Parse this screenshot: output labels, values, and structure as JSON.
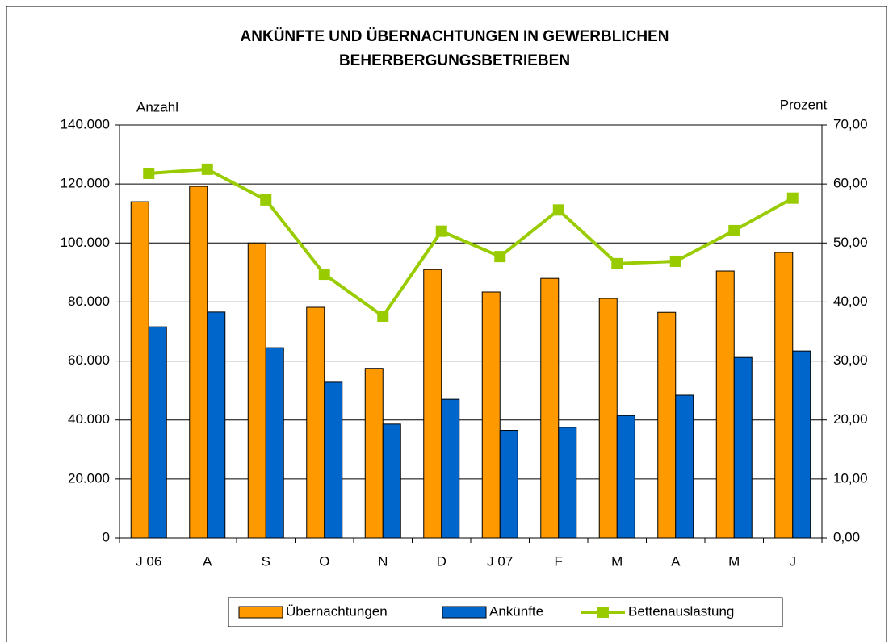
{
  "chart_data": {
    "type": "bar",
    "title": [
      "ANKÜNFTE UND ÜBERNACHTUNGEN IN GEWERBLICHEN",
      "BEHERBERGUNGSBETRIEBEN"
    ],
    "y_label": "Anzahl",
    "y2_label": "Prozent",
    "categories": [
      "J 06",
      "A",
      "S",
      "O",
      "N",
      "D",
      "J 07",
      "F",
      "M",
      "A",
      "M",
      "J"
    ],
    "series": [
      {
        "name": "Übernachtungen",
        "type": "bar",
        "color": "#ff9900",
        "values": [
          114000,
          119200,
          100000,
          78200,
          57500,
          91000,
          83400,
          88000,
          81200,
          76500,
          90500,
          96800
        ]
      },
      {
        "name": "Ankünfte",
        "type": "bar",
        "color": "#0066cc",
        "values": [
          71600,
          76600,
          64500,
          52800,
          38600,
          47000,
          36500,
          37500,
          41500,
          48400,
          61200,
          63400
        ]
      },
      {
        "name": "Bettenauslastung",
        "type": "line",
        "axis": "y2",
        "color": "#99cc00",
        "values": [
          61.8,
          62.5,
          57.3,
          44.7,
          37.6,
          52.0,
          47.7,
          55.6,
          46.5,
          46.9,
          52.1,
          57.6
        ]
      }
    ],
    "ylim": [
      0,
      140000
    ],
    "yticks": [
      0,
      {
        "value": 20000,
        "label": "20.000"
      },
      {
        "value": 40000,
        "label": "40.000"
      },
      {
        "value": 60000,
        "label": "60.000"
      },
      {
        "value": 80000,
        "label": "80.000"
      },
      {
        "value": 100000,
        "label": "100.000"
      },
      {
        "value": 120000,
        "label": "120.000"
      },
      {
        "value": 140000,
        "label": "140.000"
      }
    ],
    "y2lim": [
      0,
      70
    ],
    "y2ticks": [
      {
        "value": 0,
        "label": "0,00"
      },
      {
        "value": 10,
        "label": "10,00"
      },
      {
        "value": 20,
        "label": "20,00"
      },
      {
        "value": 30,
        "label": "30,00"
      },
      {
        "value": 40,
        "label": "40,00"
      },
      {
        "value": 50,
        "label": "50,00"
      },
      {
        "value": 60,
        "label": "60,00"
      },
      {
        "value": 70,
        "label": "70,00"
      }
    ],
    "grid": true,
    "legend": "bottom"
  }
}
